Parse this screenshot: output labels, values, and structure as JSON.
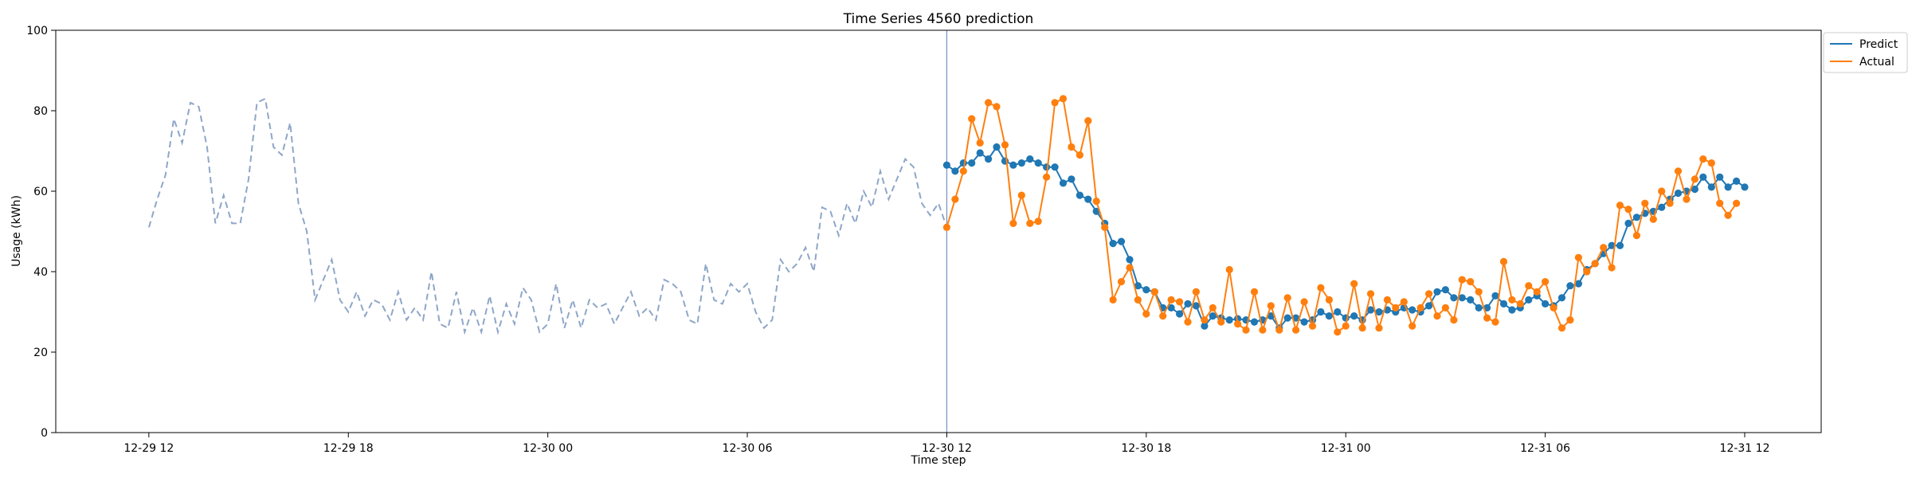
{
  "chart_data": {
    "type": "line",
    "title": "Time Series 4560 prediction",
    "xlabel": "Time step",
    "ylabel": "Usage (kWh)",
    "ylim": [
      0,
      100
    ],
    "yticks": [
      0,
      20,
      40,
      60,
      80,
      100
    ],
    "xlim_hours": [
      -2.8,
      50.3
    ],
    "xticks": [
      {
        "hour": 0,
        "label": "12-29 12"
      },
      {
        "hour": 6,
        "label": "12-29 18"
      },
      {
        "hour": 12,
        "label": "12-30 00"
      },
      {
        "hour": 18,
        "label": "12-30 06"
      },
      {
        "hour": 24,
        "label": "12-30 12"
      },
      {
        "hour": 30,
        "label": "12-30 18"
      },
      {
        "hour": 36,
        "label": "12-31 00"
      },
      {
        "hour": 42,
        "label": "12-31 06"
      },
      {
        "hour": 48,
        "label": "12-31 12"
      }
    ],
    "step_hours": 0.25,
    "forecast_start_hour": 24,
    "grid": false,
    "legend_position": "upper-right-outside",
    "colors": {
      "history": "#8ea6c8",
      "predict": "#1f77b4",
      "actual": "#ff7f0e",
      "divider": "#7f96c8"
    },
    "history": {
      "start_hour": 0,
      "values": [
        51,
        58,
        64,
        78,
        72,
        82,
        81,
        71,
        52,
        59,
        52,
        52,
        63,
        82,
        83,
        71,
        69,
        77,
        57,
        50,
        33,
        38,
        43,
        33,
        30,
        35,
        29,
        33,
        32,
        28,
        35,
        28,
        31,
        28,
        40,
        27,
        26,
        35,
        25,
        31,
        25,
        34,
        25,
        32,
        27,
        36,
        33,
        25,
        27,
        37,
        26,
        33,
        26,
        33,
        31,
        32,
        27,
        31,
        35,
        29,
        31,
        28,
        38,
        37,
        35,
        28,
        27,
        42,
        33,
        32,
        37,
        35,
        37,
        30,
        26,
        28,
        43,
        40,
        42,
        46,
        40,
        56,
        55,
        49,
        57,
        52,
        60,
        56,
        65,
        58,
        63,
        68,
        66,
        57,
        54,
        57,
        51
      ]
    },
    "series": [
      {
        "name": "Predict",
        "start_hour": 24,
        "values": [
          66.5,
          65,
          67,
          67,
          69.5,
          68,
          71,
          67.5,
          66.5,
          67,
          68,
          67,
          66,
          66,
          62,
          63,
          59,
          58,
          55,
          52,
          47,
          47.5,
          43,
          36.5,
          35.5,
          35,
          31,
          31,
          29.5,
          32,
          31.5,
          26.5,
          29,
          28.5,
          28,
          28.3,
          28,
          27.5,
          28,
          29,
          26,
          28.5,
          28.5,
          27.5,
          28,
          30,
          29,
          30,
          28.5,
          29,
          28,
          30.5,
          30,
          30.5,
          30,
          31,
          30.5,
          30,
          31.5,
          35,
          35.5,
          33.5,
          33.5,
          33,
          31,
          31,
          34,
          32,
          30.5,
          31,
          33,
          34,
          32,
          31.5,
          33.5,
          36.5,
          37,
          40.5,
          42,
          44.5,
          46.5,
          46.5,
          52,
          53.5,
          54.5,
          55,
          56,
          58,
          59.5,
          60,
          60.5,
          63.5,
          61,
          63.5,
          61,
          62.5,
          61
        ]
      },
      {
        "name": "Actual",
        "start_hour": 24,
        "values": [
          51,
          58,
          65,
          78,
          72,
          82,
          81,
          71.5,
          52,
          59,
          52,
          52.5,
          63.5,
          82,
          83,
          71,
          69,
          77.5,
          57.5,
          51,
          33,
          37.5,
          41,
          33,
          29.5,
          35,
          29,
          33,
          32.5,
          27.5,
          35,
          28,
          31,
          27.5,
          40.5,
          27,
          25.5,
          35,
          25.5,
          31.5,
          25.5,
          33.5,
          25.5,
          32.5,
          26.5,
          36,
          33,
          25,
          26.5,
          37,
          26,
          34.5,
          26,
          33,
          31,
          32.5,
          26.5,
          31,
          34.5,
          29,
          31,
          28,
          38,
          37.5,
          35,
          28.5,
          27.5,
          42.5,
          33,
          32,
          36.5,
          35,
          37.5,
          31,
          26,
          28,
          43.5,
          40,
          42,
          46,
          41,
          56.5,
          55.5,
          49,
          57,
          53,
          60,
          57,
          65,
          58,
          63,
          68,
          67,
          57,
          54,
          57
        ]
      }
    ]
  }
}
